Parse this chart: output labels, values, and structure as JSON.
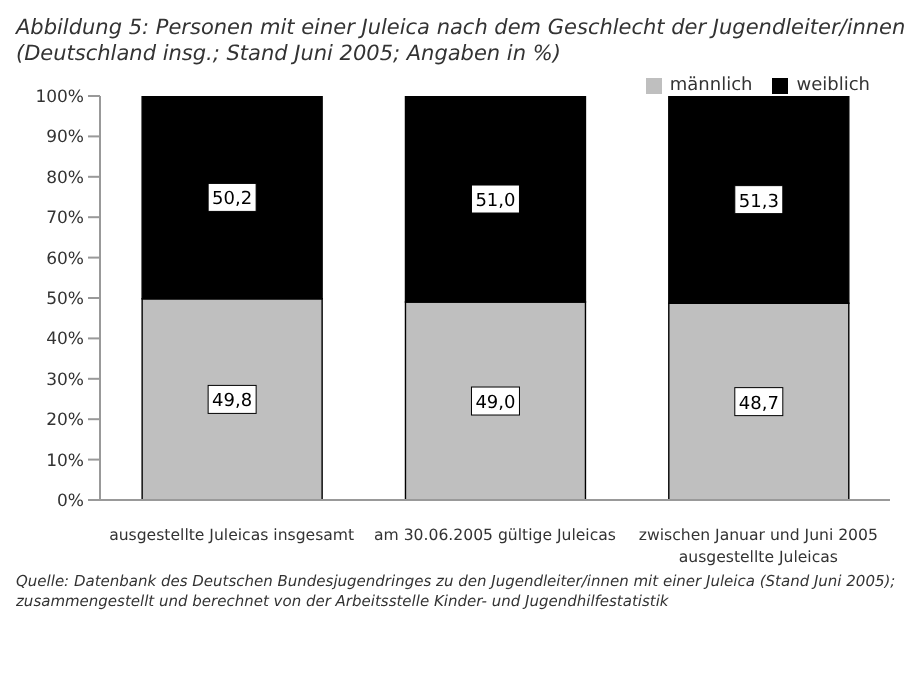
{
  "chart_data": {
    "type": "bar",
    "stacked": true,
    "title": "Abbildung 5: Personen mit einer Juleica nach dem Geschlecht der Jugendleiter/innen (Deutschland insg.; Stand Juni 2005; Angaben in %)",
    "categories": [
      "ausgestellte Juleicas insgesamt",
      "am 30.06.2005 gültige Juleicas",
      "zwischen Januar und Juni 2005 ausgestellte Juleicas"
    ],
    "series": [
      {
        "name": "männlich",
        "color": "#bfbfbf",
        "values": [
          49.8,
          49.0,
          48.7
        ],
        "value_labels": [
          "49,8",
          "49,0",
          "48,7"
        ]
      },
      {
        "name": "weiblich",
        "color": "#000000",
        "values": [
          50.2,
          51.0,
          51.3
        ],
        "value_labels": [
          "50,2",
          "51,0",
          "51,3"
        ]
      }
    ],
    "ylim": [
      0,
      100
    ],
    "yticks": [
      {
        "value": 0,
        "label": "0%"
      },
      {
        "value": 10,
        "label": "10%"
      },
      {
        "value": 20,
        "label": "20%"
      },
      {
        "value": 30,
        "label": "30%"
      },
      {
        "value": 40,
        "label": "40%"
      },
      {
        "value": 50,
        "label": "50%"
      },
      {
        "value": 60,
        "label": "60%"
      },
      {
        "value": 70,
        "label": "70%"
      },
      {
        "value": 80,
        "label": "80%"
      },
      {
        "value": 90,
        "label": "90%"
      },
      {
        "value": 100,
        "label": "100%"
      }
    ],
    "legend": "top right",
    "annotations": [
      "Quelle: Datenbank des Deutschen Bundesjugendringes zu den Jugendleiter/innen mit einer Juleica (Stand Juni 2005); zusammengestellt und berechnet von der Arbeitsstelle Kinder- und Jugendhilfestatistik"
    ]
  }
}
